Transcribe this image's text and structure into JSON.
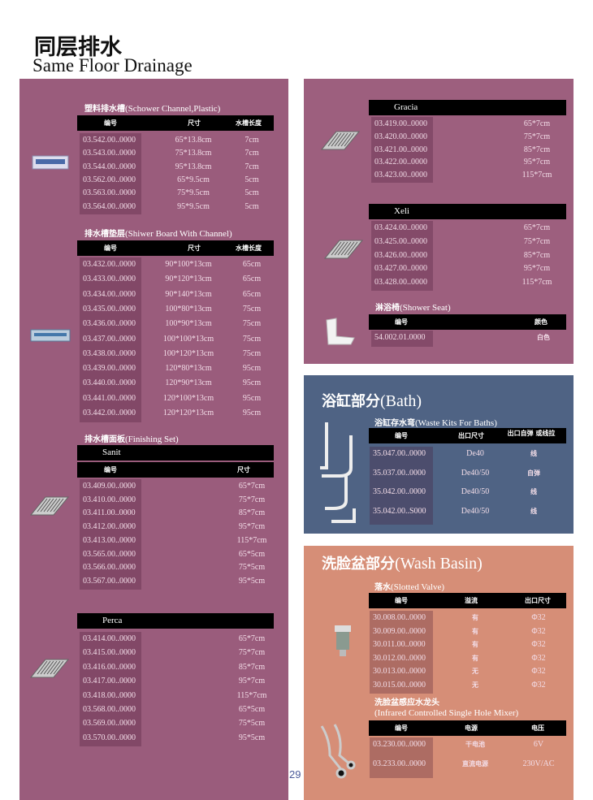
{
  "header": {
    "title_cn": "同层排水",
    "title_en": "Same Floor Drainage"
  },
  "page_number": "29",
  "colors": {
    "left_panel": "#9a5c7c",
    "right_panel": "#9d5f7e",
    "bath_panel": "#4f6384",
    "wash_panel": "#d68e77",
    "header_bar": "#000000"
  },
  "tables": {
    "plastic_channel": {
      "title_cn": "塑料排水槽",
      "title_en": "(Schower Channel,Plastic)",
      "headers": [
        "编号",
        "尺寸",
        "水槽长度"
      ],
      "rows": [
        [
          "03.542.00..0000",
          "65*13.8cm",
          "7cm"
        ],
        [
          "03.543.00..0000",
          "75*13.8cm",
          "7cm"
        ],
        [
          "03.544.00..0000",
          "95*13.8cm",
          "7cm"
        ],
        [
          "03.562.00..0000",
          "65*9.5cm",
          "5cm"
        ],
        [
          "03.563.00..0000",
          "75*9.5cm",
          "5cm"
        ],
        [
          "03.564.00..0000",
          "95*9.5cm",
          "5cm"
        ]
      ]
    },
    "board_channel": {
      "title_cn": "排水槽垫层",
      "title_en": "(Shiwer Board With Channel)",
      "headers": [
        "编号",
        "尺寸",
        "水槽长度"
      ],
      "rows": [
        [
          "03.432.00..0000",
          "90*100*13cm",
          "65cm"
        ],
        [
          "03.433.00..0000",
          "90*120*13cm",
          "65cm"
        ],
        [
          "03.434.00..0000",
          "90*140*13cm",
          "65cm"
        ],
        [
          "03.435.00..0000",
          "100*80*13cm",
          "75cm"
        ],
        [
          "03.436.00..0000",
          "100*90*13cm",
          "75cm"
        ],
        [
          "03.437.00..0000",
          "100*100*13cm",
          "75cm"
        ],
        [
          "03.438.00..0000",
          "100*120*13cm",
          "75cm"
        ],
        [
          "03.439.00..0000",
          "120*80*13cm",
          "95cm"
        ],
        [
          "03.440.00..0000",
          "120*90*13cm",
          "95cm"
        ],
        [
          "03.441.00..0000",
          "120*100*13cm",
          "95cm"
        ],
        [
          "03.442.00..0000",
          "120*120*13cm",
          "95cm"
        ]
      ]
    },
    "finishing_sanit": {
      "title_cn": "排水槽面板",
      "title_en": "(Finishing Set)",
      "bar": "Sanit",
      "headers": [
        "编号",
        "尺寸"
      ],
      "rows": [
        [
          "03.409.00..0000",
          "65*7cm"
        ],
        [
          "03.410.00..0000",
          "75*7cm"
        ],
        [
          "03.411.00..0000",
          "85*7cm"
        ],
        [
          "03.412.00..0000",
          "95*7cm"
        ],
        [
          "03.413.00..0000",
          "115*7cm"
        ],
        [
          "03.565.00..0000",
          "65*5cm"
        ],
        [
          "03.566.00..0000",
          "75*5cm"
        ],
        [
          "03.567.00..0000",
          "95*5cm"
        ]
      ]
    },
    "perca": {
      "bar": "Perca",
      "rows": [
        [
          "03.414.00..0000",
          "65*7cm"
        ],
        [
          "03.415.00..0000",
          "75*7cm"
        ],
        [
          "03.416.00..0000",
          "85*7cm"
        ],
        [
          "03.417.00..0000",
          "95*7cm"
        ],
        [
          "03.418.00..0000",
          "115*7cm"
        ],
        [
          "03.568.00..0000",
          "65*5cm"
        ],
        [
          "03.569.00..0000",
          "75*5cm"
        ],
        [
          "03.570.00..0000",
          "95*5cm"
        ]
      ]
    },
    "gracia": {
      "bar": "Gracia",
      "rows": [
        [
          "03.419.00..0000",
          "65*7cm"
        ],
        [
          "03.420.00..0000",
          "75*7cm"
        ],
        [
          "03.421.00..0000",
          "85*7cm"
        ],
        [
          "03.422.00..0000",
          "95*7cm"
        ],
        [
          "03.423.00..0000",
          "115*7cm"
        ]
      ]
    },
    "xeli": {
      "bar": "Xeli",
      "rows": [
        [
          "03.424.00..0000",
          "65*7cm"
        ],
        [
          "03.425.00..0000",
          "75*7cm"
        ],
        [
          "03.426.00..0000",
          "85*7cm"
        ],
        [
          "03.427.00..0000",
          "95*7cm"
        ],
        [
          "03.428.00..0000",
          "115*7cm"
        ]
      ]
    },
    "shower_seat": {
      "title_cn": "淋浴椅",
      "title_en": "(Shower Seat)",
      "headers": [
        "编号",
        "颜色"
      ],
      "rows": [
        [
          "54.002.01.0000",
          "白色"
        ]
      ]
    },
    "bath_waste": {
      "section_cn": "浴缸部分",
      "section_en": "(Bath)",
      "title_cn": "浴缸存水弯",
      "title_en": "(Waste Kits For Baths)",
      "headers": [
        "编号",
        "出口尺寸",
        "出口自弹 或线拉"
      ],
      "rows": [
        [
          "35.047.00..0000",
          "De40",
          "线"
        ],
        [
          "35.037.00..0000",
          "De40/50",
          "自弹"
        ],
        [
          "35.042.00..0000",
          "De40/50",
          "线"
        ],
        [
          "35.042.00..S000",
          "De40/50",
          "线"
        ]
      ]
    },
    "slotted_valve": {
      "section_cn": "洗脸盆部分",
      "section_en": "(Wash Basin)",
      "title_cn": "落水",
      "title_en": "(Slotted Valve)",
      "headers": [
        "编号",
        "溢流",
        "出口尺寸"
      ],
      "rows": [
        [
          "30.008.00..0000",
          "有",
          "Φ32"
        ],
        [
          "30.009.00..0000",
          "有",
          "Φ32"
        ],
        [
          "30.011.00..0000",
          "有",
          "Φ32"
        ],
        [
          "30.012.00..0000",
          "有",
          "Φ32"
        ],
        [
          "30.013.00..0000",
          "无",
          "Φ32"
        ],
        [
          "30.015.00..0000",
          "无",
          "Φ32"
        ]
      ]
    },
    "infrared_mixer": {
      "title_cn": "洗脸盆感应水龙头",
      "title_en": "(Infrared Controlled Single Hole Mixer)",
      "headers": [
        "编号",
        "电源",
        "电压"
      ],
      "rows": [
        [
          "03.230.00..0000",
          "干电池",
          "6V"
        ],
        [
          "03.233.00..0000",
          "直流电源",
          "230V/AC"
        ]
      ]
    }
  }
}
